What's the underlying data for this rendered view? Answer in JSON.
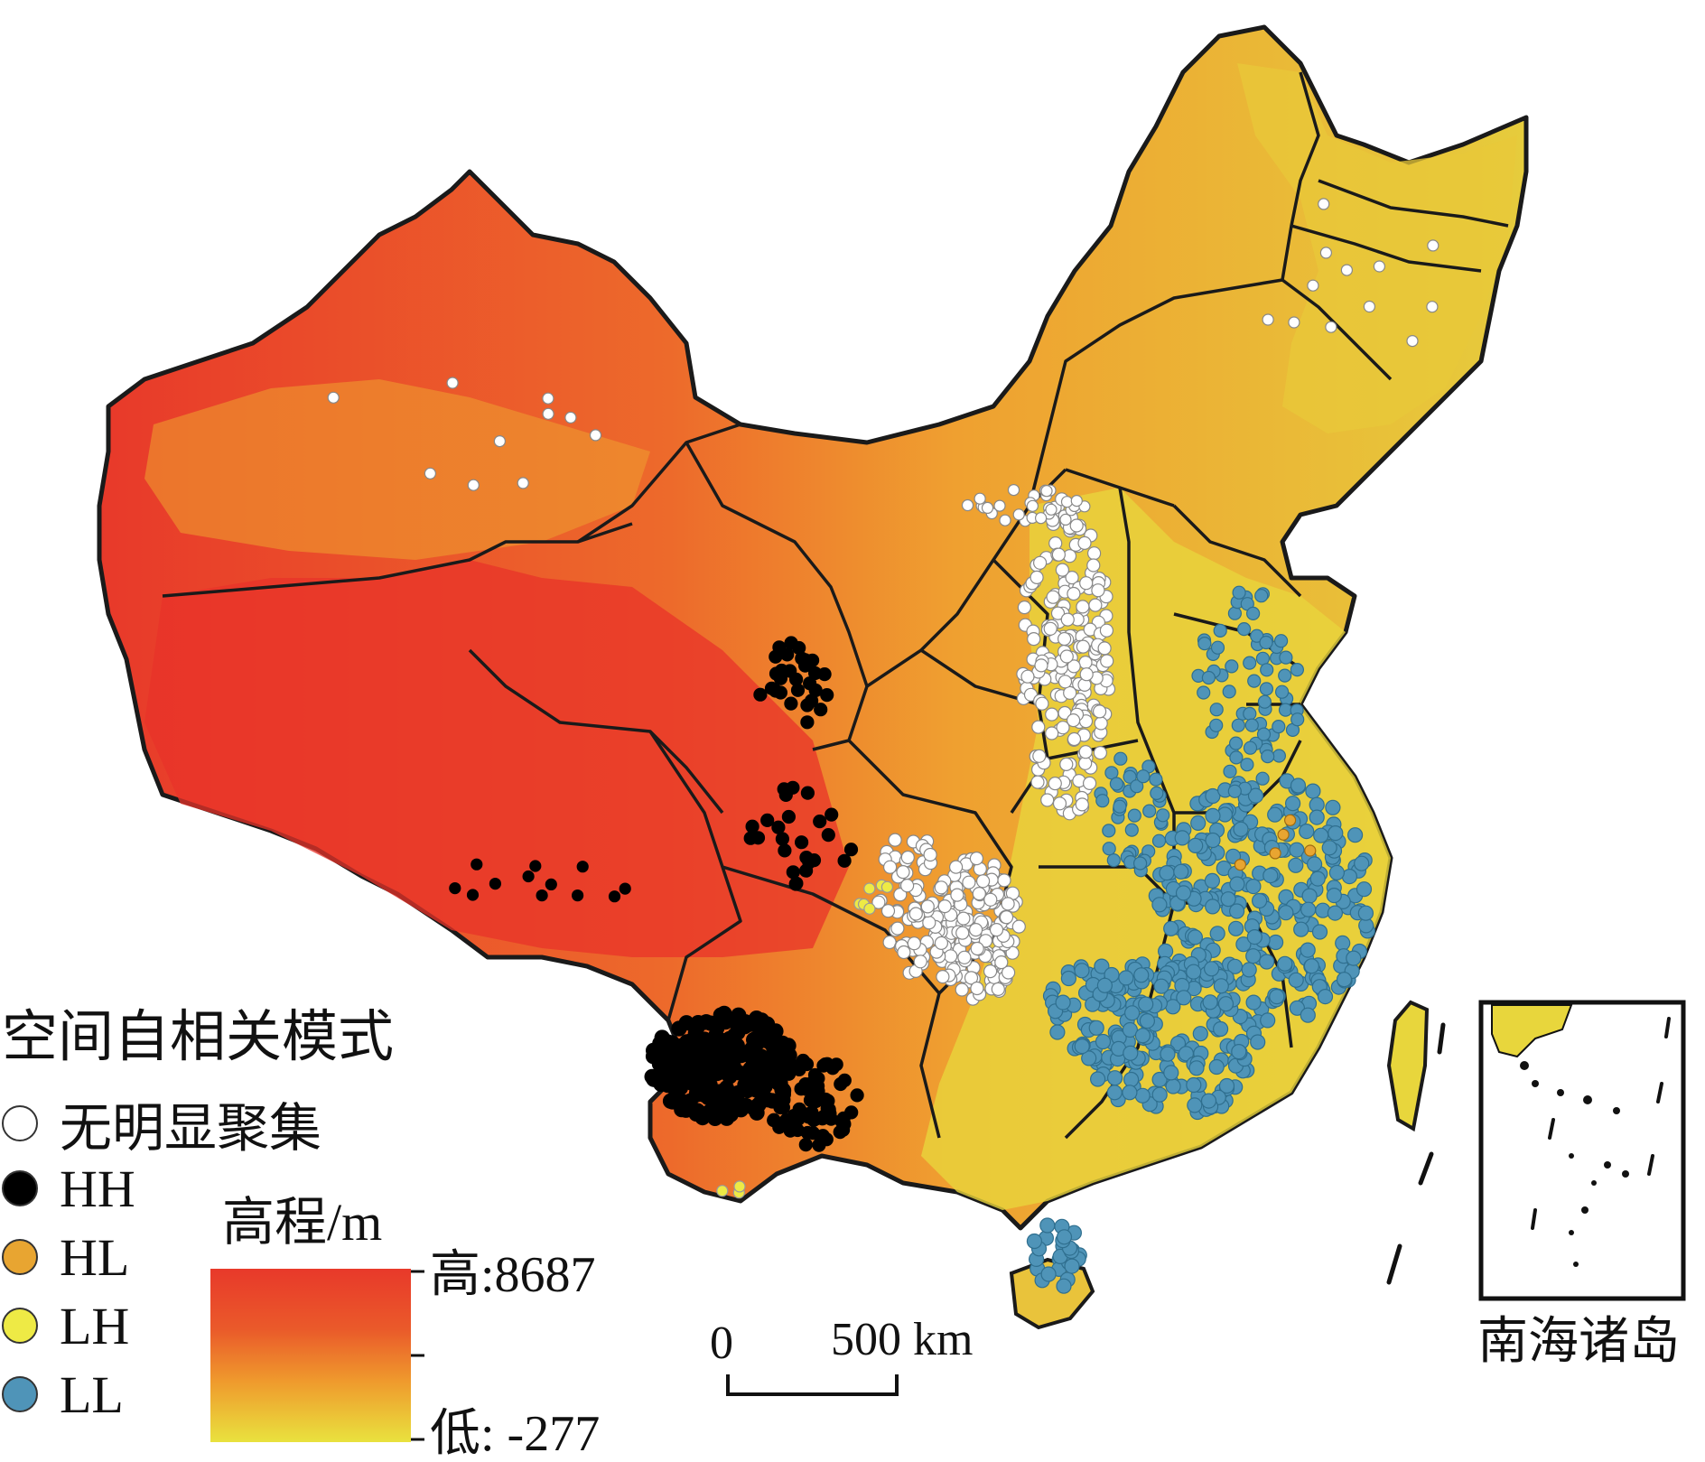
{
  "legend": {
    "title": "空间自相关模式",
    "items": [
      {
        "label": "无明显聚集",
        "color": "#ffffff"
      },
      {
        "label": "HH",
        "color": "#000000"
      },
      {
        "label": "HL",
        "color": "#e8a531"
      },
      {
        "label": "LH",
        "color": "#eeea45"
      },
      {
        "label": "LL",
        "color": "#4f94b8"
      }
    ]
  },
  "elevation": {
    "title": "高程/m",
    "high": "高:8687",
    "low": "低: -277",
    "colors": {
      "high": "#e8392a",
      "mid": "#ef9a2d",
      "low": "#e9e23e"
    }
  },
  "scale": {
    "zero": "0",
    "length": "500 km"
  },
  "inset": {
    "label": "南海诸岛"
  }
}
